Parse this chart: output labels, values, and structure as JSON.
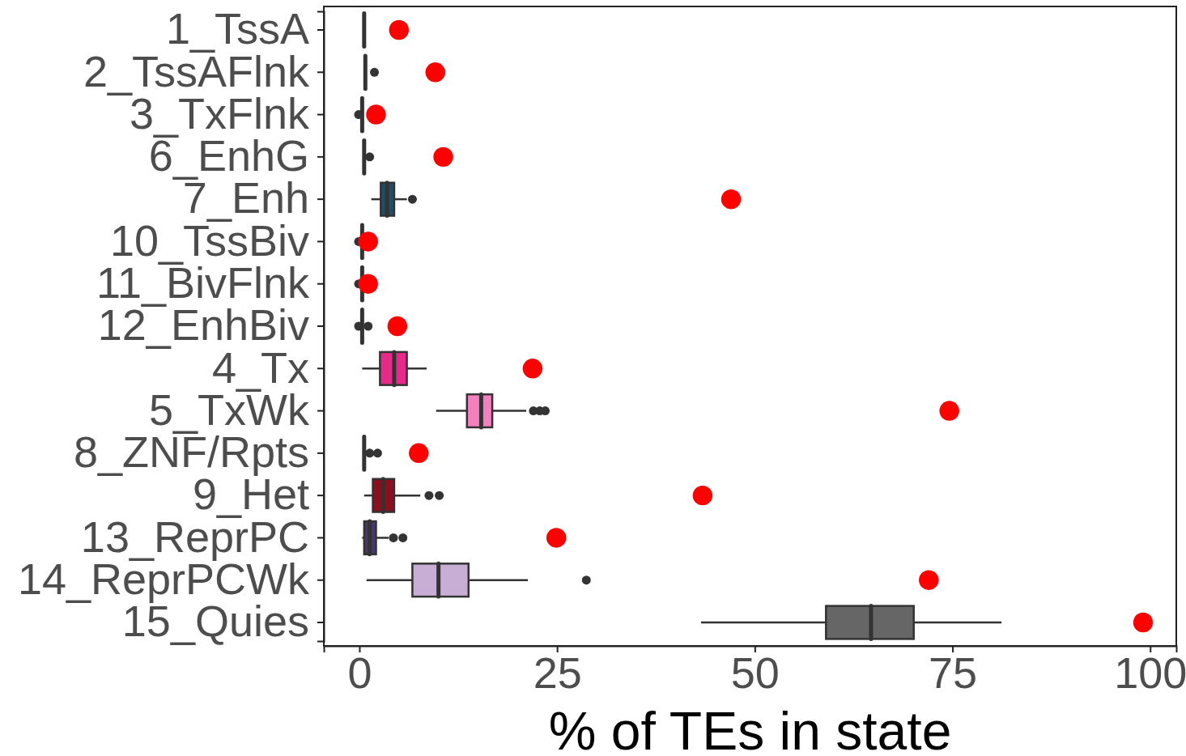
{
  "chart_data": {
    "type": "box",
    "orientation": "horizontal",
    "xlabel": "% of TEs in state",
    "categories": [
      "1_TssA",
      "2_TssAFlnk",
      "3_TxFlnk",
      "6_EnhG",
      "7_Enh",
      "10_TssBiv",
      "11_BivFlnk",
      "12_EnhBiv",
      "4_Tx",
      "5_TxWk",
      "8_ZNF/Rpts",
      "9_Het",
      "13_ReprPC",
      "14_ReprPCWk",
      "15_Quies"
    ],
    "xlim": [
      -4.5,
      103.3
    ],
    "xticks": [
      0,
      25,
      50,
      75,
      100
    ],
    "grid": false,
    "series": [
      {
        "colors": [
          "#333333",
          "#333333",
          "#333333",
          "#333333",
          "#1f4e6b",
          "#333333",
          "#333333",
          "#333333",
          "#e7298a",
          "#f580c0",
          "#333333",
          "#8a0f1f",
          "#4a3670",
          "#c8aed4",
          "#666666"
        ],
        "boxes": [
          {
            "low": 0.6,
            "q1": 0.6,
            "median": 0.6,
            "q3": 0.6,
            "high": 0.6
          },
          {
            "low": 0.75,
            "q1": 0.75,
            "median": 0.75,
            "q3": 0.75,
            "high": 0.75,
            "outliers": [
              1.9
            ]
          },
          {
            "low": 0.35,
            "q1": 0.35,
            "median": 0.35,
            "q3": 0.35,
            "high": 0.35,
            "outliers": [
              -0.1
            ]
          },
          {
            "low": 0.6,
            "q1": 0.6,
            "median": 0.6,
            "q3": 0.6,
            "high": 0.6,
            "outliers": [
              1.3
            ]
          },
          {
            "low": 1.5,
            "q1": 2.7,
            "median": 3.5,
            "q3": 4.4,
            "high": 6.0,
            "outliers": [
              6.7
            ]
          },
          {
            "low": 0.35,
            "q1": 0.35,
            "median": 0.35,
            "q3": 0.35,
            "high": 0.35,
            "outliers": [
              -0.1
            ]
          },
          {
            "low": 0.35,
            "q1": 0.35,
            "median": 0.35,
            "q3": 0.35,
            "high": 0.35,
            "outliers": [
              -0.1
            ]
          },
          {
            "low": 0.35,
            "q1": 0.35,
            "median": 0.35,
            "q3": 0.35,
            "high": 0.35,
            "outliers": [
              -0.1,
              1.1
            ]
          },
          {
            "low": 0.35,
            "q1": 2.6,
            "median": 4.4,
            "q3": 6.0,
            "high": 8.5
          },
          {
            "low": 9.7,
            "q1": 13.6,
            "median": 15.4,
            "q3": 16.8,
            "high": 21.1,
            "outliers": [
              22.0,
              22.8,
              23.5
            ]
          },
          {
            "low": 0.6,
            "q1": 0.6,
            "median": 0.6,
            "q3": 0.6,
            "high": 0.6,
            "outliers": [
              1.3,
              2.3
            ]
          },
          {
            "low": 0.6,
            "q1": 1.7,
            "median": 3.0,
            "q3": 4.4,
            "high": 7.7,
            "outliers": [
              8.8,
              10.1
            ]
          },
          {
            "low": 0.35,
            "q1": 0.6,
            "median": 1.3,
            "q3": 2.1,
            "high": 3.7,
            "outliers": [
              4.3,
              5.5
            ]
          },
          {
            "low": 0.9,
            "q1": 6.7,
            "median": 10.0,
            "q3": 13.8,
            "high": 21.3,
            "outliers": [
              28.7
            ]
          },
          {
            "low": 43.2,
            "q1": 59.0,
            "median": 64.7,
            "q3": 70.1,
            "high": 81.2
          }
        ]
      },
      {
        "type": "scatter",
        "color": "#ff0000",
        "marker": "circle",
        "x": [
          "1_TssA",
          "2_TssAFlnk",
          "3_TxFlnk",
          "6_EnhG",
          "7_Enh",
          "10_TssBiv",
          "11_BivFlnk",
          "12_EnhBiv",
          "4_Tx",
          "5_TxWk",
          "8_ZNF/Rpts",
          "9_Het",
          "13_ReprPC",
          "14_ReprPCWk",
          "15_Quies"
        ],
        "values": [
          5.0,
          9.6,
          2.1,
          10.6,
          47.0,
          1.1,
          1.1,
          4.8,
          21.9,
          74.6,
          7.5,
          43.4,
          24.9,
          72.0,
          99.1
        ]
      }
    ]
  }
}
